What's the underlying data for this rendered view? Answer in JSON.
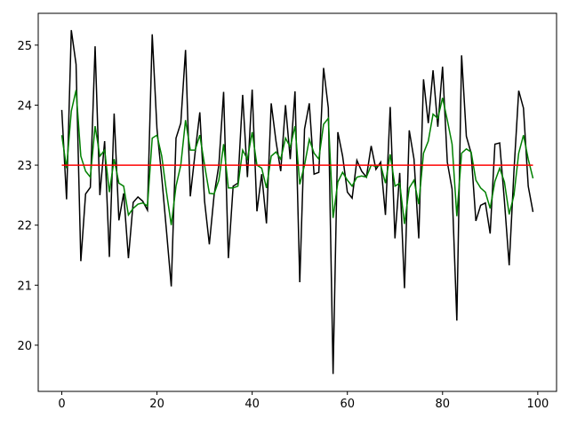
{
  "chart_data": {
    "type": "line",
    "x": [
      0,
      1,
      2,
      3,
      4,
      5,
      6,
      7,
      8,
      9,
      10,
      11,
      12,
      13,
      14,
      15,
      16,
      17,
      18,
      19,
      20,
      21,
      22,
      23,
      24,
      25,
      26,
      27,
      28,
      29,
      30,
      31,
      32,
      33,
      34,
      35,
      36,
      37,
      38,
      39,
      40,
      41,
      42,
      43,
      44,
      45,
      46,
      47,
      48,
      49,
      50,
      51,
      52,
      53,
      54,
      55,
      56,
      57,
      58,
      59,
      60,
      61,
      62,
      63,
      64,
      65,
      66,
      67,
      68,
      69,
      70,
      71,
      72,
      73,
      74,
      75,
      76,
      77,
      78,
      79,
      80,
      81,
      82,
      83,
      84,
      85,
      86,
      87,
      88,
      89,
      90,
      91,
      92,
      93,
      94,
      95,
      96,
      97,
      98,
      99
    ],
    "series": [
      {
        "color": "#000000",
        "values": [
          23.92,
          22.43,
          25.25,
          24.68,
          21.4,
          22.52,
          22.63,
          24.98,
          22.5,
          23.4,
          21.47,
          23.86,
          22.08,
          22.53,
          21.45,
          22.38,
          22.47,
          22.4,
          22.25,
          25.18,
          23.6,
          22.8,
          21.9,
          20.98,
          23.45,
          23.7,
          24.92,
          22.48,
          23.2,
          23.88,
          22.4,
          21.68,
          22.5,
          23.0,
          24.22,
          21.45,
          22.65,
          22.7,
          24.17,
          22.8,
          24.26,
          22.23,
          22.85,
          22.03,
          24.03,
          23.4,
          22.9,
          24.0,
          23.1,
          24.23,
          21.05,
          23.6,
          24.03,
          22.85,
          22.88,
          24.62,
          23.95,
          19.52,
          23.55,
          23.15,
          22.55,
          22.45,
          23.08,
          22.9,
          22.8,
          23.32,
          22.93,
          23.05,
          22.17,
          23.97,
          21.78,
          22.87,
          20.95,
          23.58,
          23.1,
          21.78,
          24.43,
          23.7,
          24.58,
          23.64,
          24.64,
          23.05,
          22.6,
          20.41,
          24.83,
          23.48,
          23.2,
          22.07,
          22.33,
          22.37,
          21.86,
          23.35,
          23.37,
          22.4,
          21.33,
          22.9,
          24.24,
          23.95,
          22.65,
          22.22
        ]
      },
      {
        "color": "#008000",
        "values": [
          23.5,
          22.95,
          23.9,
          24.25,
          23.15,
          22.9,
          22.8,
          23.65,
          23.15,
          23.25,
          22.55,
          23.1,
          22.7,
          22.65,
          22.17,
          22.28,
          22.35,
          22.37,
          22.32,
          23.45,
          23.5,
          23.15,
          22.55,
          22.0,
          22.65,
          23.0,
          23.75,
          23.25,
          23.25,
          23.5,
          23.0,
          22.53,
          22.52,
          22.75,
          23.35,
          22.62,
          22.62,
          22.65,
          23.25,
          23.1,
          23.55,
          23.0,
          22.95,
          22.62,
          23.15,
          23.22,
          23.1,
          23.45,
          23.3,
          23.65,
          22.68,
          23.0,
          23.43,
          23.2,
          23.1,
          23.68,
          23.78,
          22.12,
          22.72,
          22.88,
          22.75,
          22.65,
          22.8,
          22.82,
          22.8,
          23.0,
          22.98,
          23.0,
          22.7,
          23.18,
          22.65,
          22.7,
          22.02,
          22.62,
          22.75,
          22.35,
          23.2,
          23.4,
          23.85,
          23.78,
          24.12,
          23.75,
          23.35,
          22.15,
          23.2,
          23.27,
          23.22,
          22.75,
          22.62,
          22.55,
          22.28,
          22.73,
          22.95,
          22.72,
          22.18,
          22.5,
          23.2,
          23.5,
          23.1,
          22.78
        ]
      },
      {
        "color": "#ff0000",
        "values": [
          23,
          23,
          23,
          23,
          23,
          23,
          23,
          23,
          23,
          23,
          23,
          23,
          23,
          23,
          23,
          23,
          23,
          23,
          23,
          23,
          23,
          23,
          23,
          23,
          23,
          23,
          23,
          23,
          23,
          23,
          23,
          23,
          23,
          23,
          23,
          23,
          23,
          23,
          23,
          23,
          23,
          23,
          23,
          23,
          23,
          23,
          23,
          23,
          23,
          23,
          23,
          23,
          23,
          23,
          23,
          23,
          23,
          23,
          23,
          23,
          23,
          23,
          23,
          23,
          23,
          23,
          23,
          23,
          23,
          23,
          23,
          23,
          23,
          23,
          23,
          23,
          23,
          23,
          23,
          23,
          23,
          23,
          23,
          23,
          23,
          23,
          23,
          23,
          23,
          23,
          23,
          23,
          23,
          23,
          23,
          23,
          23,
          23,
          23,
          23
        ]
      }
    ],
    "xlim": [
      -4.95,
      103.95
    ],
    "ylim": [
      19.23,
      25.53
    ],
    "xticks": [
      0,
      20,
      40,
      60,
      80,
      100
    ],
    "yticks": [
      20,
      21,
      22,
      23,
      24,
      25
    ]
  }
}
